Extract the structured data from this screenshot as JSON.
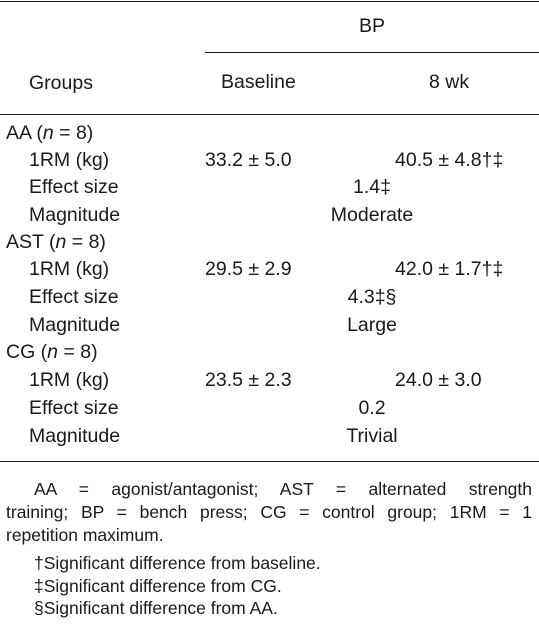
{
  "table": {
    "header": {
      "group_label": "BP",
      "groups_col": "Groups",
      "baseline_col": "Baseline",
      "week8_col": "8 wk"
    },
    "groups": [
      {
        "name": "AA",
        "n_prefix": "(",
        "n_var": "n",
        "n_suffix": " = 8)",
        "rm_label": "1RM (kg)",
        "baseline": "33.2 ± 5.0",
        "week8": "40.5 ± 4.8†‡",
        "effect_label": "Effect size",
        "effect": "1.4‡",
        "magnitude_label": "Magnitude",
        "magnitude": "Moderate"
      },
      {
        "name": "AST",
        "n_prefix": "(",
        "n_var": "n",
        "n_suffix": " = 8)",
        "rm_label": "1RM (kg)",
        "baseline": "29.5 ± 2.9",
        "week8": "42.0 ± 1.7†‡",
        "effect_label": "Effect size",
        "effect": "4.3‡§",
        "magnitude_label": "Magnitude",
        "magnitude": "Large"
      },
      {
        "name": "CG",
        "n_prefix": "(",
        "n_var": "n",
        "n_suffix": " = 8)",
        "rm_label": "1RM (kg)",
        "baseline": "23.5 ± 2.3",
        "week8": "24.0 ± 3.0",
        "effect_label": "Effect size",
        "effect": "0.2",
        "magnitude_label": "Magnitude",
        "magnitude": "Trivial"
      }
    ]
  },
  "footnotes": {
    "abbrev_line1": "AA = agonist/antagonist; AST = alternated strength",
    "abbrev_line2": "training; BP = bench press; CG = control group; 1RM = 1",
    "abbrev_line3": "repetition maximum.",
    "dagger": "†Significant difference from baseline.",
    "ddagger": "‡Significant difference from CG.",
    "section": "§Significant difference from AA."
  }
}
